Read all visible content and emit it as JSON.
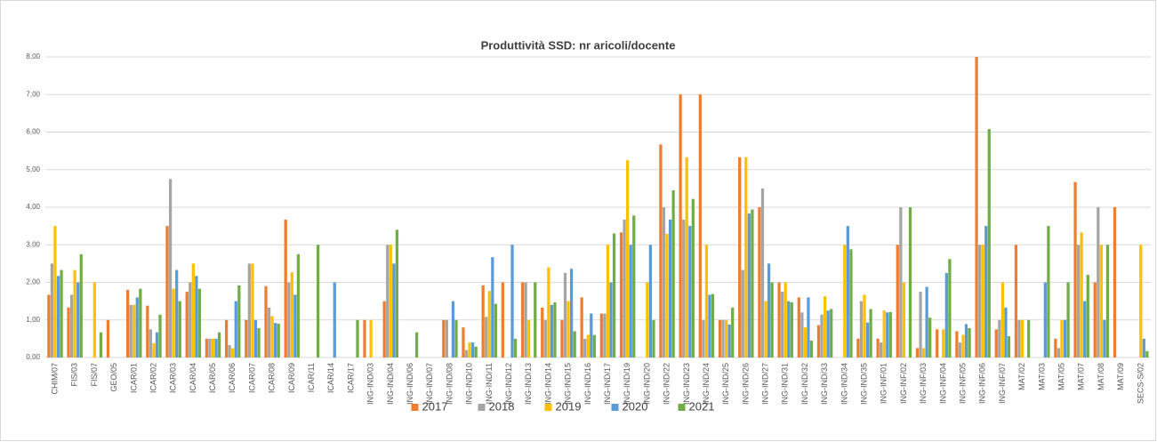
{
  "chart_data": {
    "type": "bar",
    "title": "Produttività SSD: nr aricoli/docente",
    "categories": [
      "CHIM/07",
      "FIS/03",
      "FIS/07",
      "GEO/05",
      "ICAR/01",
      "ICAR/02",
      "ICAR/03",
      "ICAR/04",
      "ICAR/05",
      "ICAR/06",
      "ICAR/07",
      "ICAR/08",
      "ICAR/09",
      "ICAR/11",
      "ICAR/14",
      "ICAR/17",
      "ING-IND/03",
      "ING-IND/04",
      "ING-IND/06",
      "ING-IND/07",
      "ING-IND/08",
      "ING-IND/10",
      "ING-IND/11",
      "ING-IND/12",
      "ING-IND/13",
      "ING-IND/14",
      "ING-IND/15",
      "ING-IND/16",
      "ING-IND/17",
      "ING-IND/19",
      "ING-IND/20",
      "ING-IND/22",
      "ING-IND/23",
      "ING-IND/24",
      "ING-IND/25",
      "ING-IND/26",
      "ING-IND/27",
      "ING-IND/31",
      "ING-IND/32",
      "ING-IND/33",
      "ING-IND/34",
      "ING-IND/35",
      "ING-INF/01",
      "ING-INF/02",
      "ING-INF/03",
      "ING-INF/04",
      "ING-INF/05",
      "ING-INF/06",
      "ING-INF/07",
      "MAT/02",
      "MAT/03",
      "MAT/05",
      "MAT/07",
      "MAT/08",
      "MAT/09",
      "SECS-S/02"
    ],
    "series": [
      {
        "name": "2017",
        "color": "#ed7d31",
        "values": [
          1.67,
          1.33,
          0,
          1.0,
          1.8,
          1.38,
          3.5,
          1.75,
          0.5,
          1.0,
          1.0,
          1.9,
          3.67,
          0,
          0,
          0,
          1.0,
          1.5,
          0,
          0,
          1.0,
          0.8,
          1.92,
          2.0,
          2.0,
          1.33,
          1.0,
          1.6,
          1.17,
          3.33,
          0,
          5.67,
          7.0,
          7.0,
          1.0,
          5.33,
          4.0,
          2.0,
          1.6,
          0.86,
          0,
          0.5,
          0.5,
          3.0,
          0.25,
          0.75,
          0.7,
          8.0,
          0.75,
          3.0,
          0,
          0.5,
          4.67,
          2.0,
          4.0,
          0
        ]
      },
      {
        "name": "2018",
        "color": "#a5a5a5",
        "values": [
          2.5,
          1.67,
          0,
          0,
          1.4,
          0.75,
          4.75,
          2.0,
          0.5,
          0.33,
          2.5,
          1.33,
          2.0,
          0,
          0,
          0,
          0,
          3.0,
          0,
          0,
          1.0,
          0.2,
          1.08,
          0,
          2.0,
          1.0,
          2.25,
          0.5,
          1.17,
          3.67,
          0,
          4.0,
          3.67,
          1.0,
          1.0,
          2.33,
          4.5,
          1.75,
          1.2,
          1.14,
          0,
          1.5,
          0.4,
          4.0,
          1.75,
          0,
          0.4,
          3.0,
          1.0,
          1.0,
          0,
          0.25,
          3.0,
          4.0,
          0,
          0
        ]
      },
      {
        "name": "2019",
        "color": "#ffc000",
        "values": [
          3.5,
          2.33,
          2.0,
          0,
          1.4,
          0.38,
          1.83,
          2.5,
          0.5,
          0.25,
          2.5,
          1.1,
          2.27,
          0,
          0,
          0,
          1.0,
          3.0,
          0,
          0,
          0,
          0.4,
          1.77,
          0,
          1.0,
          2.4,
          1.5,
          0.6,
          3.0,
          5.25,
          2.0,
          3.29,
          5.33,
          3.0,
          1.0,
          5.33,
          1.5,
          2.0,
          0.8,
          1.63,
          3.0,
          1.67,
          1.25,
          2.0,
          0.25,
          0.75,
          0.6,
          3.0,
          2.0,
          1.0,
          0,
          1.0,
          3.33,
          3.0,
          0,
          3.0
        ]
      },
      {
        "name": "2020",
        "color": "#5b9bd5",
        "values": [
          2.17,
          2.0,
          0,
          0,
          1.6,
          0.67,
          2.33,
          2.17,
          0.5,
          1.5,
          1.0,
          0.92,
          1.67,
          0,
          2.0,
          0,
          0,
          2.5,
          0,
          0,
          1.5,
          0.4,
          2.67,
          3.0,
          0,
          1.4,
          2.36,
          1.17,
          2.0,
          3.0,
          3.0,
          3.67,
          3.5,
          1.67,
          0.88,
          3.83,
          2.5,
          1.5,
          1.6,
          1.25,
          3.5,
          0.93,
          1.2,
          0,
          1.88,
          2.25,
          0.89,
          3.5,
          1.33,
          0,
          2.0,
          1.0,
          1.5,
          1.0,
          0,
          0.5
        ]
      },
      {
        "name": "2021",
        "color": "#70ad47",
        "values": [
          2.33,
          2.75,
          0.67,
          0,
          1.83,
          1.14,
          1.5,
          1.83,
          0.67,
          1.92,
          0.78,
          0.9,
          2.75,
          3.0,
          0,
          1.0,
          0,
          3.4,
          0.67,
          0,
          1.0,
          0.29,
          1.43,
          0.5,
          2.0,
          1.47,
          0.7,
          0.6,
          3.3,
          3.78,
          1.0,
          4.45,
          4.22,
          1.69,
          1.33,
          3.94,
          2.0,
          1.47,
          0.45,
          1.29,
          2.88,
          1.29,
          1.21,
          4.0,
          1.06,
          2.62,
          0.78,
          6.08,
          0.57,
          1.0,
          3.5,
          2.0,
          2.2,
          3.0,
          0,
          0.17
        ]
      }
    ],
    "ylim": [
      0,
      8
    ],
    "yticks": [
      {
        "value": 0,
        "label": "0,00"
      },
      {
        "value": 1,
        "label": "1,00"
      },
      {
        "value": 2,
        "label": "2,00"
      },
      {
        "value": 3,
        "label": "3,00"
      },
      {
        "value": 4,
        "label": "4,00"
      },
      {
        "value": 5,
        "label": "5,00"
      },
      {
        "value": 6,
        "label": "6,00"
      },
      {
        "value": 7,
        "label": "7,00"
      },
      {
        "value": 8,
        "label": "8,00"
      }
    ],
    "grid": true,
    "legend": "bottom"
  }
}
